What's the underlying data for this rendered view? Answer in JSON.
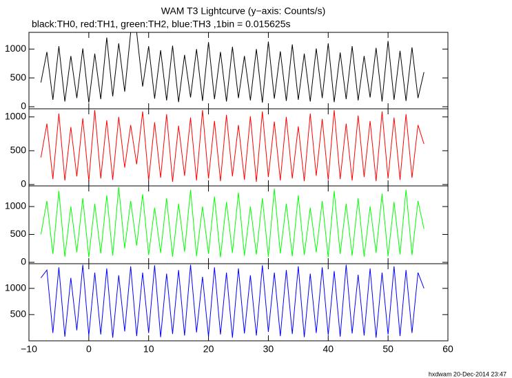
{
  "chart_data": [
    {
      "type": "line",
      "title": "WAM T3 Lightcurve (y−axis: Counts/s)",
      "subtitle": "black:TH0, red:TH1, green:TH2, blue:TH3 ,1bin = 0.015625s",
      "x": [
        -8,
        -7,
        -6,
        -5,
        -4,
        -3,
        -2,
        -1,
        0,
        1,
        2,
        3,
        4,
        5,
        6,
        7,
        8,
        9,
        10,
        11,
        12,
        13,
        14,
        15,
        16,
        17,
        18,
        19,
        20,
        21,
        22,
        23,
        24,
        25,
        26,
        27,
        28,
        29,
        30,
        31,
        32,
        33,
        34,
        35,
        36,
        37,
        38,
        39,
        40,
        41,
        42,
        43,
        44,
        45,
        46,
        47,
        48,
        49,
        50,
        51,
        52,
        53,
        54,
        55,
        56
      ],
      "series": [
        {
          "name": "TH0",
          "color": "#000000",
          "values": [
            420,
            950,
            120,
            1050,
            90,
            880,
            150,
            1010,
            70,
            920,
            130,
            1200,
            180,
            1100,
            260,
            1290,
            1290,
            350,
            1050,
            140,
            980,
            110,
            1060,
            80,
            900,
            160,
            1000,
            100,
            1120,
            130,
            950,
            90,
            1040,
            150,
            880,
            110,
            1000,
            70,
            1130,
            140,
            960,
            100,
            1080,
            120,
            920,
            90,
            1010,
            150,
            1100,
            80,
            940,
            130,
            1050,
            110,
            880,
            160,
            1020,
            90,
            1140,
            120,
            970,
            100,
            1030,
            150,
            600
          ]
        }
      ],
      "xlim": [
        -10,
        60
      ],
      "xticks": [
        -10,
        0,
        10,
        20,
        30,
        40,
        50,
        60
      ],
      "ylim": [
        -36,
        1290
      ],
      "yticks": [
        0,
        500,
        1000
      ]
    },
    {
      "type": "line",
      "x": [
        -8,
        -7,
        -6,
        -5,
        -4,
        -3,
        -2,
        -1,
        0,
        1,
        2,
        3,
        4,
        5,
        6,
        7,
        8,
        9,
        10,
        11,
        12,
        13,
        14,
        15,
        16,
        17,
        18,
        19,
        20,
        21,
        22,
        23,
        24,
        25,
        26,
        27,
        28,
        29,
        30,
        31,
        32,
        33,
        34,
        35,
        36,
        37,
        38,
        39,
        40,
        41,
        42,
        43,
        44,
        45,
        46,
        47,
        48,
        49,
        50,
        51,
        52,
        53,
        54,
        55,
        56
      ],
      "series": [
        {
          "name": "TH1",
          "color": "#ff0000",
          "values": [
            400,
            900,
            80,
            1050,
            60,
            850,
            120,
            980,
            50,
            1100,
            90,
            950,
            70,
            1000,
            250,
            880,
            300,
            1080,
            60,
            920,
            100,
            1040,
            40,
            870,
            130,
            990,
            60,
            1100,
            90,
            940,
            50,
            1030,
            120,
            880,
            70,
            1010,
            40,
            1080,
            110,
            930,
            60,
            1000,
            90,
            860,
            50,
            1050,
            130,
            970,
            70,
            1100,
            80,
            900,
            60,
            1020,
            110,
            940,
            50,
            1080,
            90,
            990,
            70,
            1040,
            100,
            880,
            600
          ]
        }
      ],
      "xlim": [
        -10,
        60
      ],
      "xticks": [
        -10,
        0,
        10,
        20,
        30,
        40,
        50,
        60
      ],
      "ylim": [
        -20,
        1120
      ],
      "yticks": [
        0,
        500,
        1000
      ]
    },
    {
      "type": "line",
      "x": [
        -8,
        -7,
        -6,
        -5,
        -4,
        -3,
        -2,
        -1,
        0,
        1,
        2,
        3,
        4,
        5,
        6,
        7,
        8,
        9,
        10,
        11,
        12,
        13,
        14,
        15,
        16,
        17,
        18,
        19,
        20,
        21,
        22,
        23,
        24,
        25,
        26,
        27,
        28,
        29,
        30,
        31,
        32,
        33,
        34,
        35,
        36,
        37,
        38,
        39,
        40,
        41,
        42,
        43,
        44,
        45,
        46,
        47,
        48,
        49,
        50,
        51,
        52,
        53,
        54,
        55,
        56
      ],
      "series": [
        {
          "name": "TH2",
          "color": "#00ff00",
          "values": [
            500,
            1100,
            150,
            1280,
            100,
            1000,
            180,
            1150,
            90,
            1050,
            160,
            1200,
            120,
            1350,
            250,
            1100,
            300,
            1220,
            130,
            980,
            170,
            1150,
            100,
            1050,
            190,
            1300,
            110,
            1000,
            150,
            1180,
            90,
            1080,
            170,
            1250,
            120,
            1000,
            140,
            1150,
            100,
            1320,
            160,
            1050,
            110,
            1200,
            130,
            980,
            180,
            1100,
            90,
            1280,
            150,
            1050,
            120,
            1150,
            100,
            1000,
            170,
            1230,
            110,
            1080,
            140,
            1300,
            130,
            1100,
            600
          ]
        }
      ],
      "xlim": [
        -10,
        60
      ],
      "xticks": [
        -10,
        0,
        10,
        20,
        30,
        40,
        50,
        60
      ],
      "ylim": [
        -25,
        1370
      ],
      "yticks": [
        0,
        500,
        1000
      ]
    },
    {
      "type": "line",
      "x": [
        -8,
        -7,
        -6,
        -5,
        -4,
        -3,
        -2,
        -1,
        0,
        1,
        2,
        3,
        4,
        5,
        6,
        7,
        8,
        9,
        10,
        11,
        12,
        13,
        14,
        15,
        16,
        17,
        18,
        19,
        20,
        21,
        22,
        23,
        24,
        25,
        26,
        27,
        28,
        29,
        30,
        31,
        32,
        33,
        34,
        35,
        36,
        37,
        38,
        39,
        40,
        41,
        42,
        43,
        44,
        45,
        46,
        47,
        48,
        49,
        50,
        51,
        52,
        53,
        54,
        55,
        56
      ],
      "series": [
        {
          "name": "TH3",
          "color": "#0000ff",
          "values": [
            1200,
            1350,
            150,
            1400,
            80,
            1200,
            200,
            1450,
            100,
            1300,
            120,
            1380,
            60,
            1250,
            180,
            1420,
            90,
            1300,
            150,
            1440,
            70,
            1280,
            130,
            1350,
            100,
            1450,
            160,
            1220,
            80,
            1400,
            120,
            1300,
            60,
            1380,
            140,
            1250,
            100,
            1440,
            170,
            1300,
            90,
            1350,
            130,
            1420,
            70,
            1280,
            150,
            1400,
            110,
            1330,
            80,
            1450,
            140,
            1260,
            100,
            1380,
            60,
            1300,
            120,
            1420,
            90,
            1350,
            150,
            1300,
            1000
          ]
        }
      ],
      "xlim": [
        -10,
        60
      ],
      "xticks": [
        {
          "value": -10,
          "label": "−10"
        },
        0,
        10,
        20,
        30,
        40,
        50,
        60
      ],
      "ylim": [
        0,
        1470
      ],
      "yticks": [
        500,
        1000
      ]
    }
  ],
  "footer": "hxdwam 20-Dec-2014 23:47"
}
